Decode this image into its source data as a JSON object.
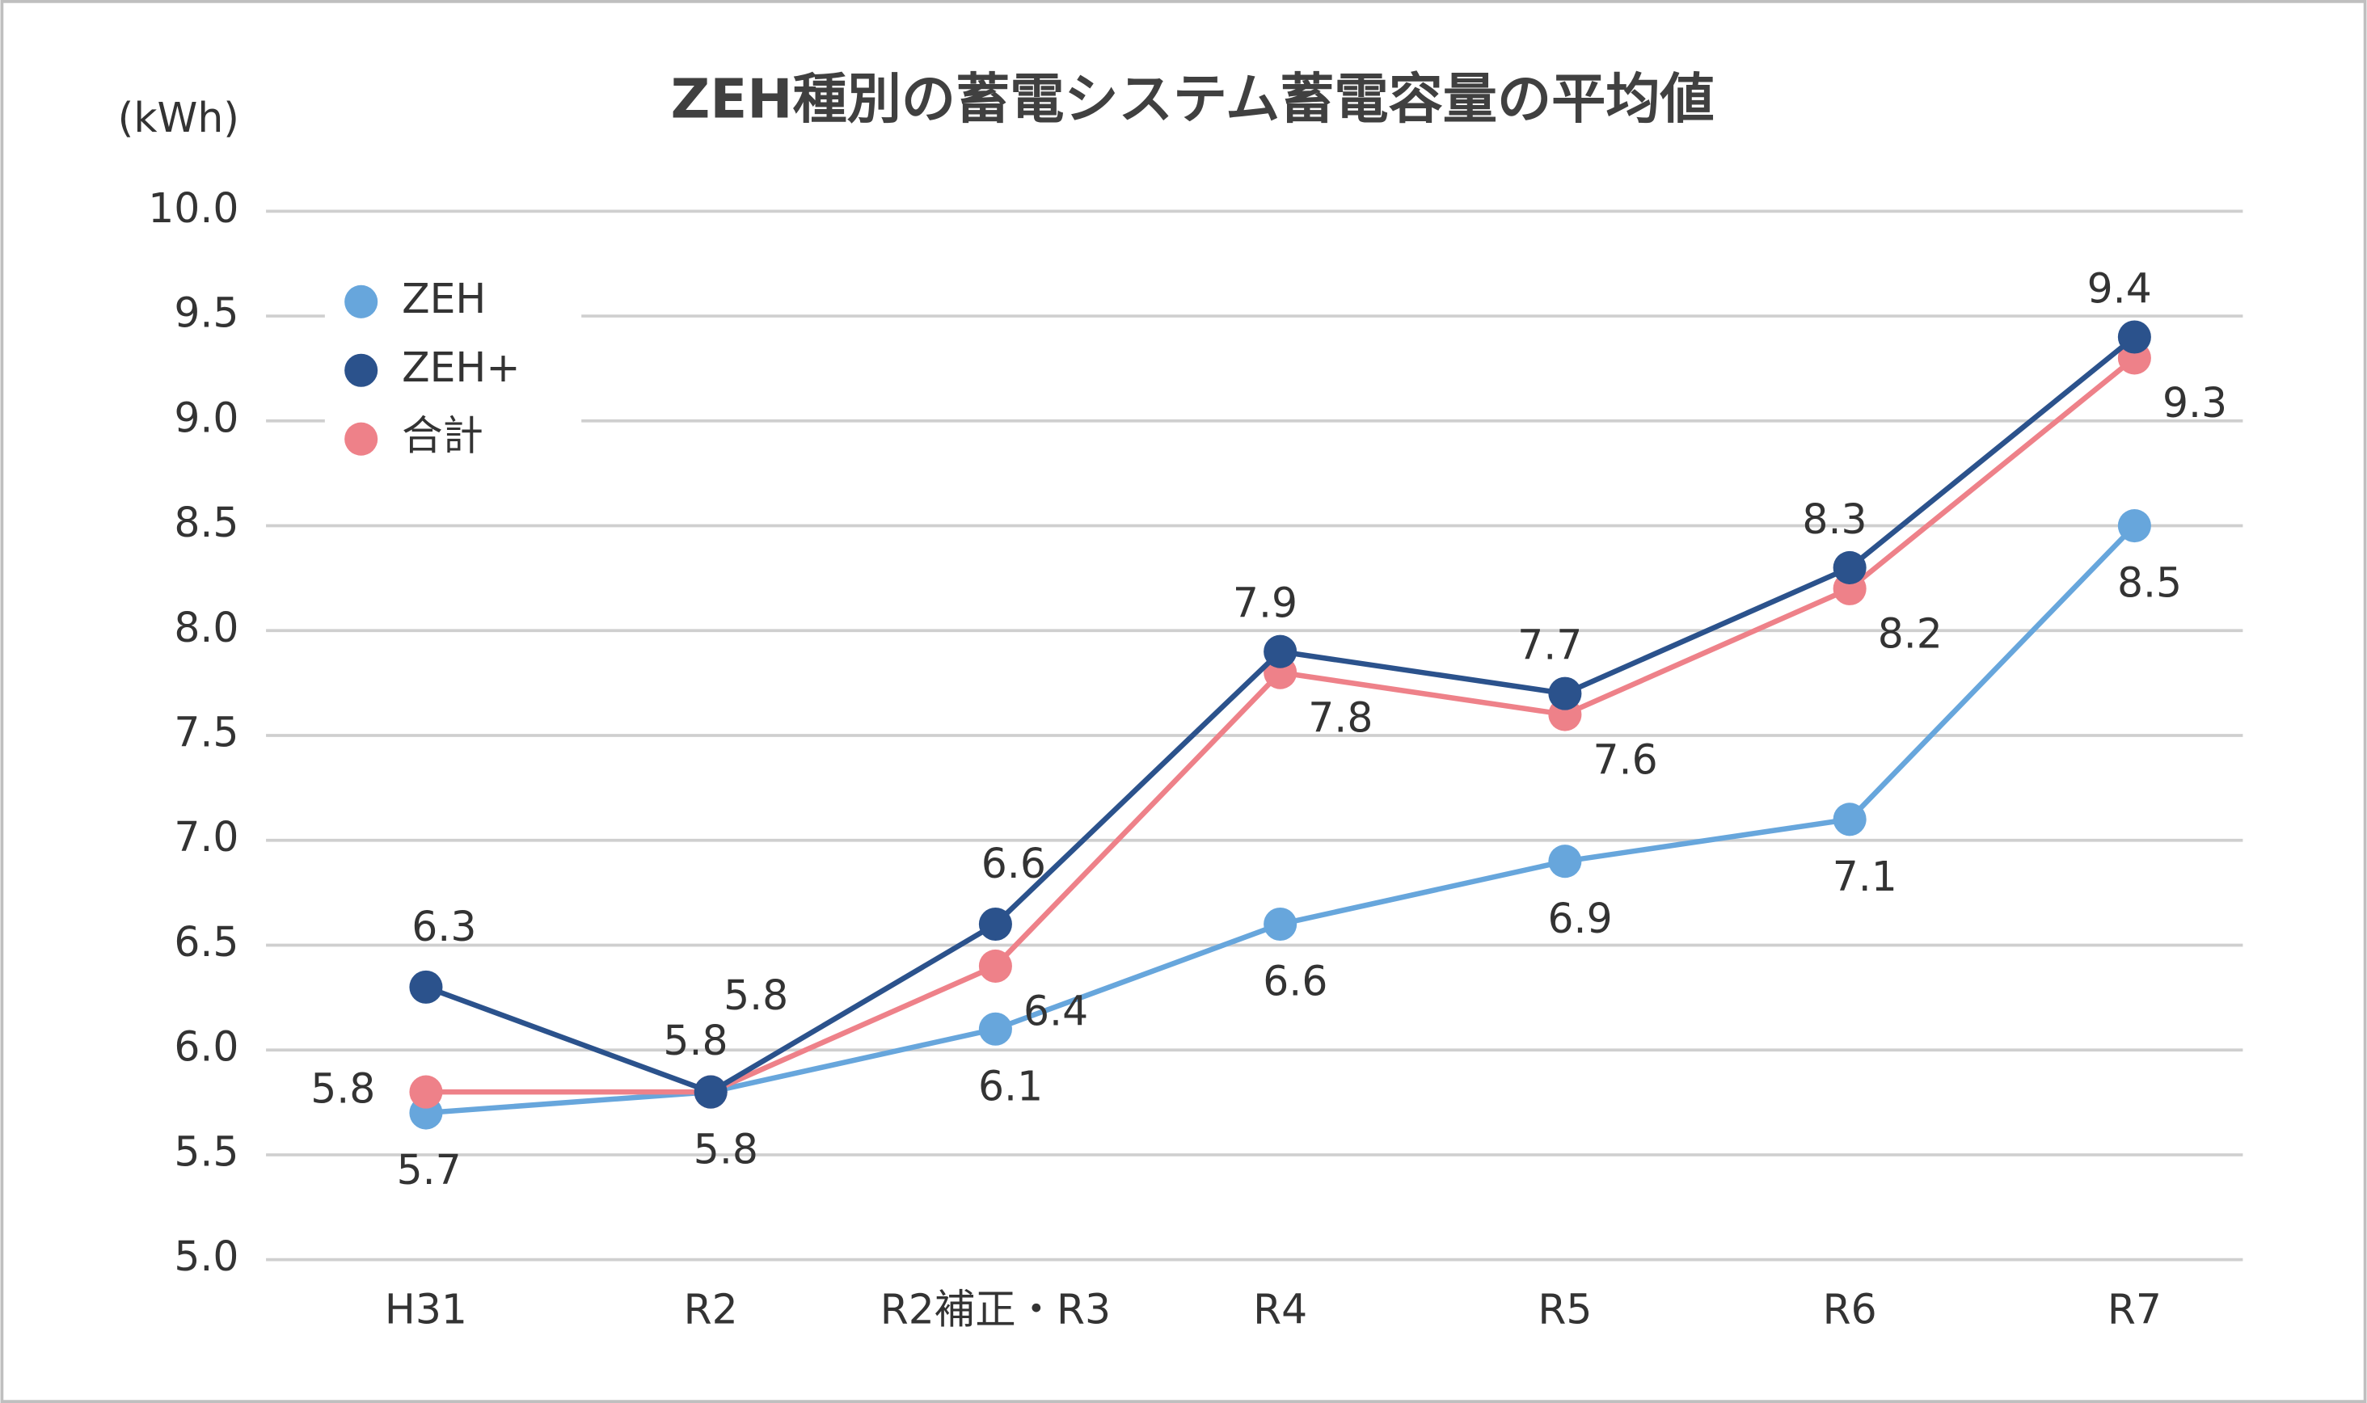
{
  "chart_data": {
    "type": "line",
    "title": "ZEH種別の蓄電システム蓄電容量の平均値",
    "y_label": "(kWh)",
    "categories": [
      "H31",
      "R2",
      "R2補正・R3",
      "R4",
      "R5",
      "R6",
      "R7"
    ],
    "series": [
      {
        "name": "ZEH",
        "color": "#67a6dc",
        "values": [
          5.7,
          5.8,
          6.1,
          6.6,
          6.9,
          7.1,
          8.5
        ]
      },
      {
        "name": "ZEH+",
        "color": "#2b528c",
        "values": [
          6.3,
          5.8,
          6.6,
          7.9,
          7.7,
          8.3,
          9.4
        ]
      },
      {
        "name": "合計",
        "color": "#ee8189",
        "values": [
          5.8,
          5.8,
          6.4,
          7.8,
          7.6,
          8.2,
          9.3
        ]
      }
    ],
    "ylim": [
      5.0,
      10.0
    ],
    "yticks": [
      {
        "value": 5.0,
        "label": "5.0"
      },
      {
        "value": 5.5,
        "label": "5.5"
      },
      {
        "value": 6.0,
        "label": "6.0"
      },
      {
        "value": 6.5,
        "label": "6.5"
      },
      {
        "value": 7.0,
        "label": "7.0"
      },
      {
        "value": 7.5,
        "label": "7.5"
      },
      {
        "value": 8.0,
        "label": "8.0"
      },
      {
        "value": 8.5,
        "label": "8.5"
      },
      {
        "value": 9.0,
        "label": "9.0"
      },
      {
        "value": 9.5,
        "label": "9.5"
      },
      {
        "value": 10.0,
        "label": "10.0"
      }
    ],
    "grid": true,
    "legend": "top-left"
  }
}
